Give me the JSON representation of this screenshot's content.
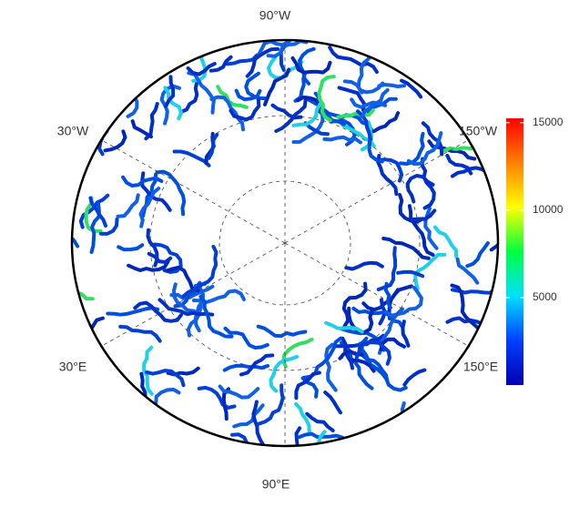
{
  "map": {
    "labels": [
      "90°W",
      "30°W",
      "150°W",
      "30°E",
      "150°E",
      "90°E"
    ]
  },
  "colorbar": {
    "range": [
      0,
      15250
    ],
    "ticks": [
      5000,
      10000,
      15000
    ],
    "colors": [
      "#0000b0",
      "#0040ff",
      "#00e0ff",
      "#00ff40",
      "#ffff00",
      "#ff8000",
      "#ff0000"
    ]
  }
}
